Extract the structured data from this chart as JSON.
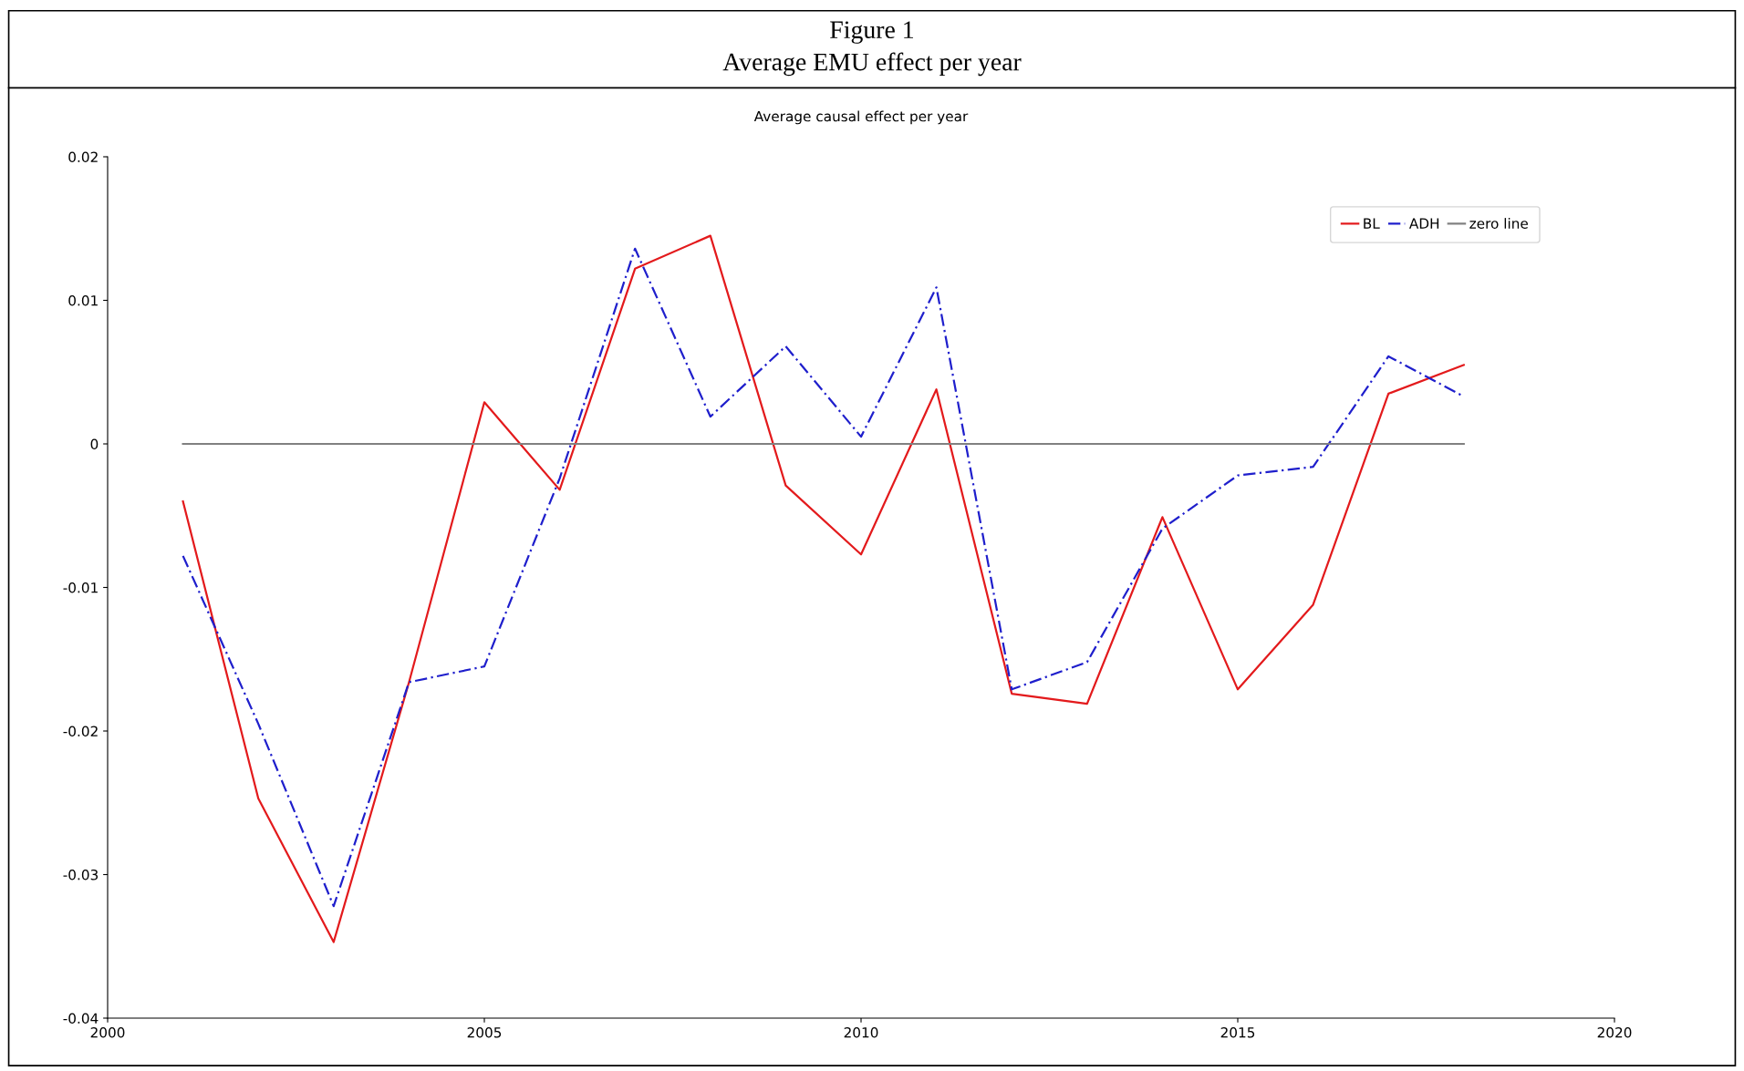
{
  "chart_data": {
    "type": "line",
    "title": "Figure 1\nAverage EMU effect per year",
    "subtitle": "Average causal effect per year",
    "x": [
      2001,
      2002,
      2003,
      2004,
      2005,
      2006,
      2007,
      2008,
      2009,
      2010,
      2011,
      2012,
      2013,
      2014,
      2015,
      2016,
      2017,
      2018
    ],
    "series": [
      {
        "name": "BL",
        "color": "#e31a1c",
        "line_style": "solid",
        "values": [
          -0.004,
          -0.0247,
          -0.0347,
          -0.0166,
          0.0029,
          -0.0032,
          0.0122,
          0.0145,
          -0.0029,
          -0.0077,
          0.0038,
          -0.0174,
          -0.0181,
          -0.0051,
          -0.0171,
          -0.0112,
          0.0035,
          0.0055
        ]
      },
      {
        "name": "ADH",
        "color": "#1f1fcc",
        "line_style": "dashed",
        "values": [
          -0.0078,
          -0.0195,
          -0.0322,
          -0.0166,
          -0.0155,
          -0.0024,
          0.0136,
          0.0019,
          0.0068,
          0.0005,
          0.0109,
          -0.0171,
          -0.0152,
          -0.0059,
          -0.0022,
          -0.0016,
          0.0061,
          0.0033
        ]
      },
      {
        "name": "zero line",
        "color": "#808080",
        "line_style": "solid",
        "values": [
          0,
          0,
          0,
          0,
          0,
          0,
          0,
          0,
          0,
          0,
          0,
          0,
          0,
          0,
          0,
          0,
          0,
          0
        ]
      }
    ],
    "xlim": [
      2000,
      2020
    ],
    "xticks": [
      2000,
      2005,
      2010,
      2015,
      2020
    ],
    "ylim": [
      -0.04,
      0.02
    ],
    "yticks": [
      -0.04,
      -0.03,
      -0.02,
      -0.01,
      0,
      0.01,
      0.02
    ],
    "grid": false,
    "legend": "top right",
    "marker": "none"
  }
}
